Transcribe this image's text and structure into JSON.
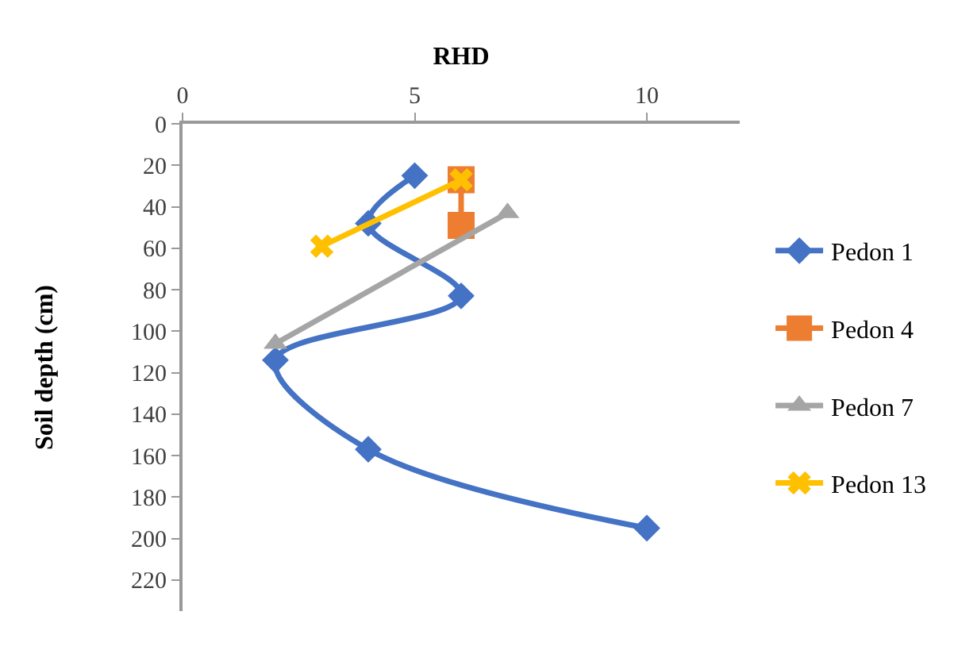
{
  "chart_data": {
    "type": "line",
    "xlabel": "RHD",
    "ylabel": "Soil depth (cm)",
    "xlim": [
      0,
      12
    ],
    "xticks": [
      0,
      5,
      10
    ],
    "ylim": [
      235,
      0
    ],
    "yticks": [
      0,
      20,
      40,
      60,
      80,
      100,
      120,
      140,
      160,
      180,
      200,
      220
    ],
    "legend": "right",
    "series": [
      {
        "name": "Pedon 1",
        "color": "#4472c4",
        "marker": "diamond",
        "x": [
          5,
          4,
          6,
          2,
          4,
          10
        ],
        "values": [
          25,
          48,
          83,
          114,
          157,
          195
        ]
      },
      {
        "name": "Pedon 4",
        "color": "#ed7d31",
        "marker": "square",
        "x": [
          6,
          6
        ],
        "values": [
          27,
          49
        ]
      },
      {
        "name": "Pedon 7",
        "color": "#a5a5a5",
        "marker": "triangle",
        "x": [
          7,
          2
        ],
        "values": [
          43,
          106
        ]
      },
      {
        "name": "Pedon 13",
        "color": "#ffc000",
        "marker": "cross",
        "x": [
          6,
          3
        ],
        "values": [
          27,
          59
        ]
      }
    ]
  }
}
